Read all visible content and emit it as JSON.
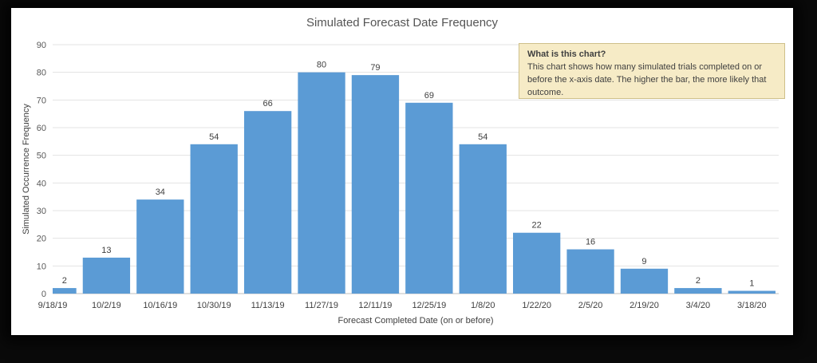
{
  "chart_data": {
    "type": "bar",
    "title": "Simulated Forecast Date Frequency",
    "xlabel": "Forecast Completed Date (on or before)",
    "ylabel": "Simulated Occurrence Frequency",
    "ylim": [
      0,
      90
    ],
    "yticks": [
      0,
      10,
      20,
      30,
      40,
      50,
      60,
      70,
      80,
      90
    ],
    "categories": [
      "9/18/19",
      "10/2/19",
      "10/16/19",
      "10/30/19",
      "11/13/19",
      "11/27/19",
      "12/11/19",
      "12/25/19",
      "1/8/20",
      "1/22/20",
      "2/5/20",
      "2/19/20",
      "3/4/20",
      "3/18/20"
    ],
    "values": [
      2,
      13,
      34,
      54,
      66,
      80,
      79,
      69,
      54,
      22,
      16,
      9,
      2,
      1
    ],
    "grid": true,
    "legend": "none",
    "bar_color": "#5b9bd5",
    "annotation": {
      "title": "What is this chart?",
      "body": "This chart shows how many simulated trials completed on or  before the x-axis date. The higher the bar, the more likely that outcome."
    }
  }
}
